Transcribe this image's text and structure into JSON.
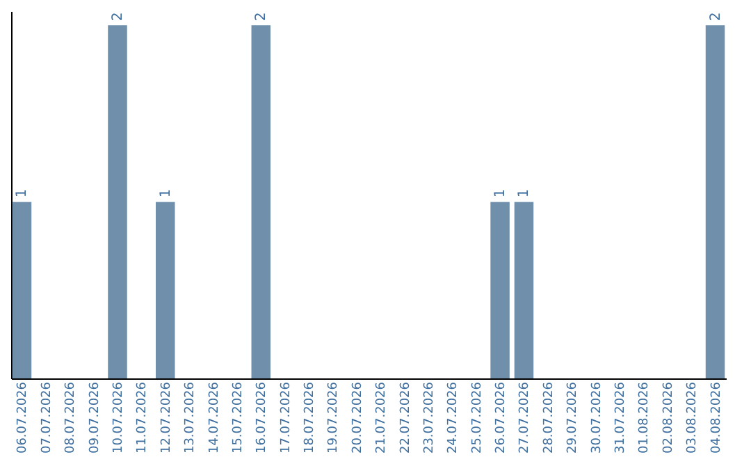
{
  "chart_data": {
    "type": "bar",
    "categories": [
      "06.07.2026",
      "07.07.2026",
      "08.07.2026",
      "09.07.2026",
      "10.07.2026",
      "11.07.2026",
      "12.07.2026",
      "13.07.2026",
      "14.07.2026",
      "15.07.2026",
      "16.07.2026",
      "17.07.2026",
      "18.07.2026",
      "19.07.2026",
      "20.07.2026",
      "21.07.2026",
      "22.07.2026",
      "23.07.2026",
      "24.07.2026",
      "25.07.2026",
      "26.07.2026",
      "27.07.2026",
      "28.07.2026",
      "29.07.2026",
      "30.07.2026",
      "31.07.2026",
      "01.08.2026",
      "02.08.2026",
      "03.08.2026",
      "04.08.2026"
    ],
    "values": [
      1,
      0,
      0,
      0,
      2,
      0,
      1,
      0,
      0,
      0,
      2,
      0,
      0,
      0,
      0,
      0,
      0,
      0,
      0,
      0,
      1,
      1,
      0,
      0,
      0,
      0,
      0,
      0,
      0,
      2
    ],
    "value_labels": [
      "1",
      null,
      null,
      null,
      "2",
      null,
      "1",
      null,
      null,
      null,
      "2",
      null,
      null,
      null,
      null,
      null,
      null,
      null,
      null,
      null,
      "1",
      "1",
      null,
      null,
      null,
      null,
      null,
      null,
      null,
      "2"
    ],
    "color": "#6f8fab"
  }
}
